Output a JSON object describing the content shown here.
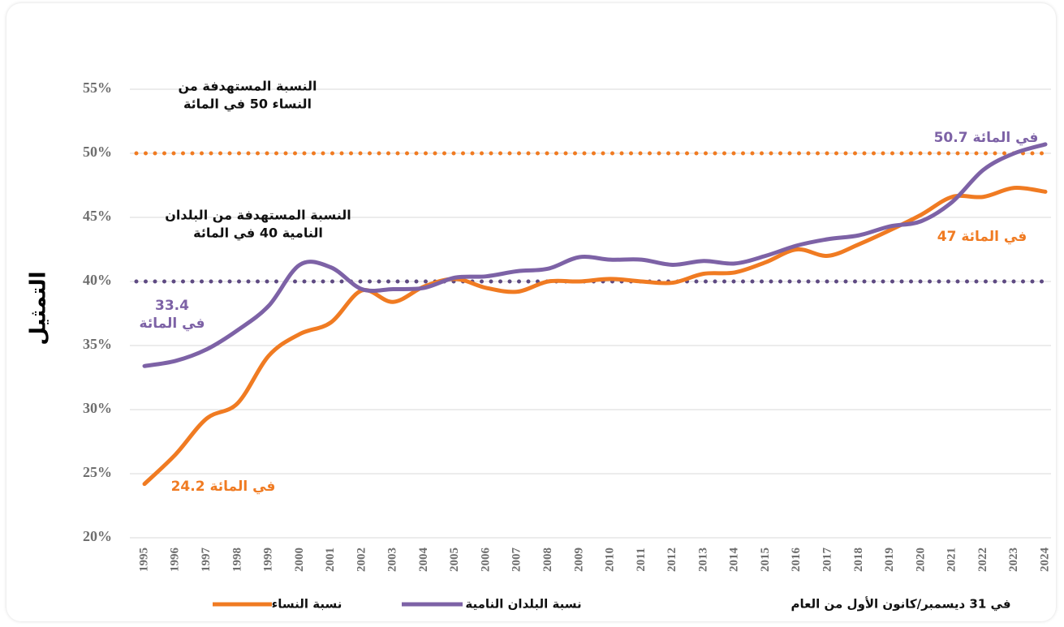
{
  "chart_data": {
    "type": "line",
    "y_label": "التمثيل",
    "x_label": "في 31 ديسمبر/كانون الأول من العام",
    "categories": [
      "1995",
      "1996",
      "1997",
      "1998",
      "1999",
      "2000",
      "2001",
      "2002",
      "2003",
      "2004",
      "2005",
      "2006",
      "2007",
      "2008",
      "2009",
      "2010",
      "2011",
      "2012",
      "2013",
      "2014",
      "2015",
      "2016",
      "2017",
      "2018",
      "2019",
      "2020",
      "2021",
      "2022",
      "2023",
      "2024"
    ],
    "series": [
      {
        "name": "نسبة النساء",
        "color": "#f07b22",
        "values": [
          24.2,
          26.5,
          29.3,
          30.5,
          34.2,
          35.9,
          36.8,
          39.3,
          38.4,
          39.6,
          40.2,
          39.5,
          39.2,
          40.0,
          40.0,
          40.2,
          40.0,
          39.9,
          40.6,
          40.7,
          41.5,
          42.5,
          42.0,
          42.9,
          44.0,
          45.2,
          46.6,
          46.6,
          47.3,
          47.0
        ]
      },
      {
        "name": "نسبة البلدان النامية",
        "color": "#7d62a6",
        "values": [
          33.4,
          33.8,
          34.7,
          36.2,
          38.1,
          41.3,
          41.1,
          39.4,
          39.4,
          39.5,
          40.3,
          40.4,
          40.8,
          41.0,
          41.9,
          41.7,
          41.7,
          41.3,
          41.6,
          41.4,
          42.0,
          42.8,
          43.3,
          43.6,
          44.3,
          44.7,
          46.2,
          48.7,
          50.0,
          50.7
        ]
      }
    ],
    "reference_lines": [
      {
        "value": 50,
        "color": "#f07b22"
      },
      {
        "value": 40,
        "color": "#5e4a82"
      }
    ],
    "annotations": [
      {
        "text": [
          "النسبة المستهدفة من",
          "النساء 50 في المائة"
        ],
        "color": "#111111"
      },
      {
        "text": [
          "النسبة المستهدفة من البلدان",
          "النامية 40 في المائة"
        ],
        "color": "#111111"
      },
      {
        "text": [
          "50.7 في المائة"
        ],
        "color": "#7d62a6"
      },
      {
        "text": [
          "47 في المائة"
        ],
        "color": "#f07b22"
      },
      {
        "text": [
          "33.4",
          "في المائة"
        ],
        "color": "#7d62a6"
      },
      {
        "text": [
          "24.2 في المائة"
        ],
        "color": "#f07b22"
      }
    ],
    "ylim": [
      20,
      55
    ],
    "yticks": [
      {
        "value": 20,
        "label": "20%"
      },
      {
        "value": 25,
        "label": "25%"
      },
      {
        "value": 30,
        "label": "30%"
      },
      {
        "value": 35,
        "label": "35%"
      },
      {
        "value": 40,
        "label": "40%"
      },
      {
        "value": 45,
        "label": "45%"
      },
      {
        "value": 50,
        "label": "50%"
      },
      {
        "value": 55,
        "label": "55%"
      }
    ],
    "grid": true
  }
}
